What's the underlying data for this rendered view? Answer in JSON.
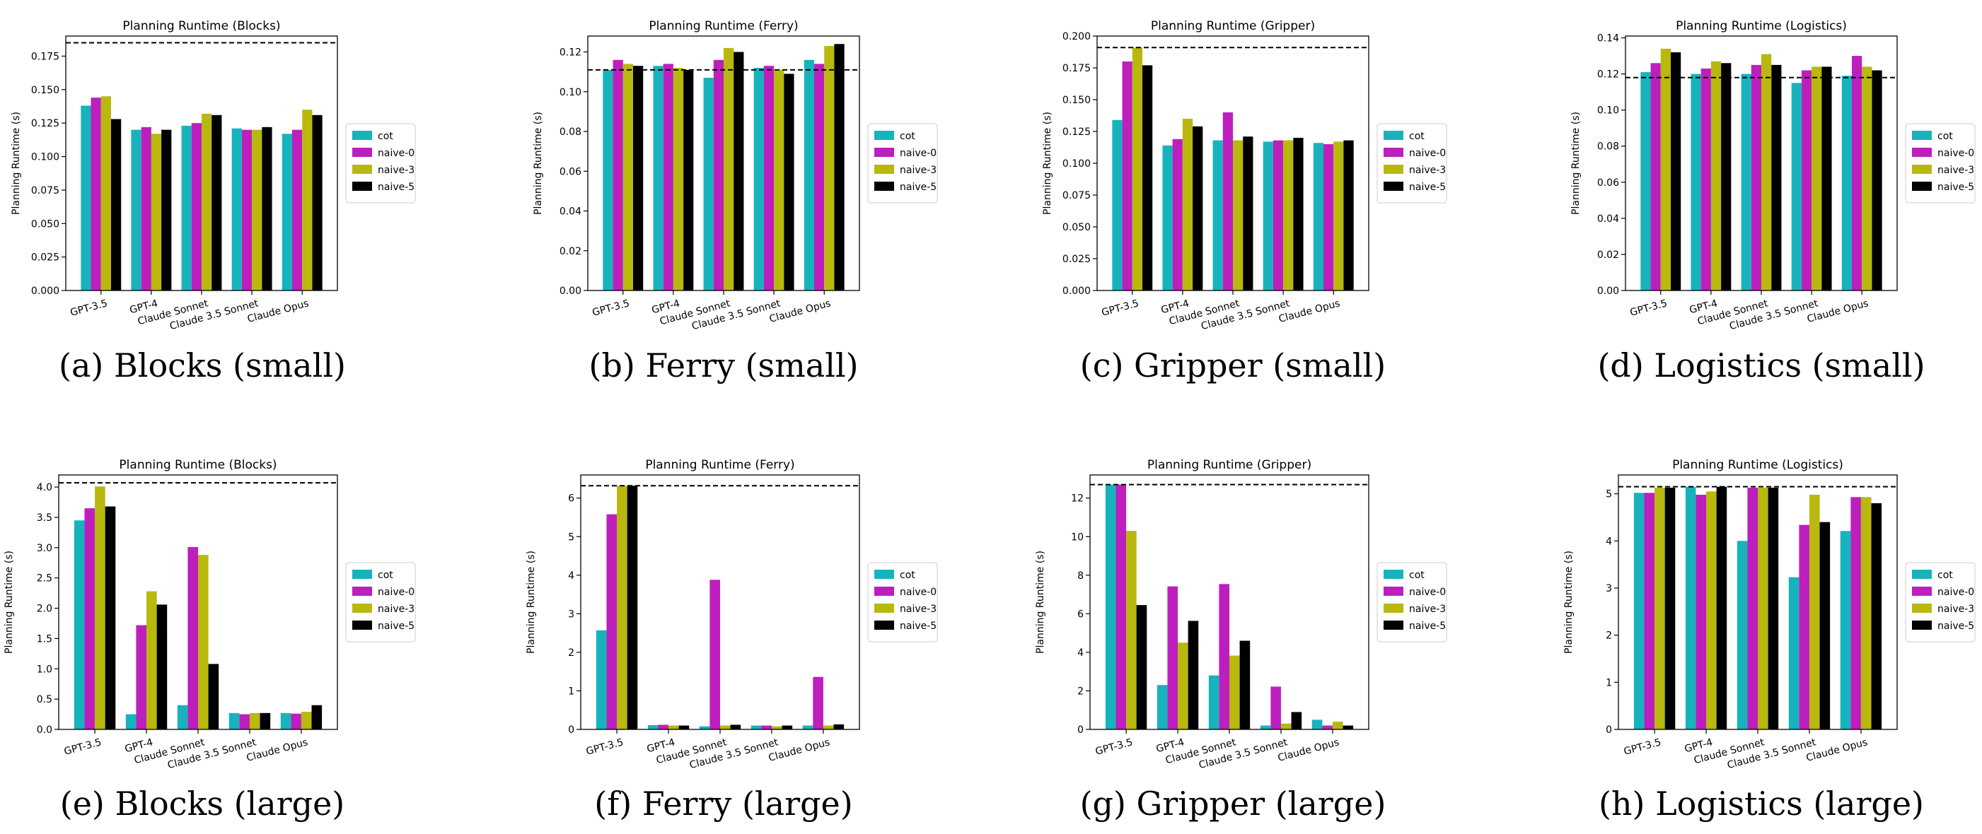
{
  "series_names": [
    "cot",
    "naive-0",
    "naive-3",
    "naive-5"
  ],
  "colors": {
    "cot": "#17b3bd",
    "naive-0": "#bd1fbd",
    "naive-3": "#b8b80e",
    "naive-5": "#000000"
  },
  "chart_data": [
    {
      "type": "bar",
      "caption": "(a) Blocks (small)",
      "title": "Planning Runtime (Blocks)",
      "ylabel": "Planning Runtime (s)",
      "categories": [
        "GPT-3.5",
        "GPT-4",
        "Claude Sonnet",
        "Claude 3.5 Sonnet",
        "Claude Opus"
      ],
      "ylim": [
        0,
        0.19
      ],
      "yticks": [
        0,
        0.025,
        0.05,
        0.075,
        0.1,
        0.125,
        0.15,
        0.175
      ],
      "ytick_labels": [
        "0.000",
        "0.025",
        "0.050",
        "0.075",
        "0.100",
        "0.125",
        "0.150",
        "0.175"
      ],
      "baseline": 0.185,
      "series": [
        {
          "name": "cot",
          "values": [
            0.138,
            0.12,
            0.123,
            0.121,
            0.117
          ]
        },
        {
          "name": "naive-0",
          "values": [
            0.144,
            0.122,
            0.125,
            0.12,
            0.12
          ]
        },
        {
          "name": "naive-3",
          "values": [
            0.145,
            0.117,
            0.132,
            0.12,
            0.135
          ]
        },
        {
          "name": "naive-5",
          "values": [
            0.128,
            0.12,
            0.131,
            0.122,
            0.131
          ]
        }
      ]
    },
    {
      "type": "bar",
      "caption": "(b) Ferry (small)",
      "title": "Planning Runtime (Ferry)",
      "ylabel": "Planning Runtime (s)",
      "categories": [
        "GPT-3.5",
        "GPT-4",
        "Claude Sonnet",
        "Claude 3.5 Sonnet",
        "Claude Opus"
      ],
      "ylim": [
        0,
        0.128
      ],
      "yticks": [
        0,
        0.02,
        0.04,
        0.06,
        0.08,
        0.1,
        0.12
      ],
      "ytick_labels": [
        "0.00",
        "0.02",
        "0.04",
        "0.06",
        "0.08",
        "0.10",
        "0.12"
      ],
      "baseline": 0.111,
      "series": [
        {
          "name": "cot",
          "values": [
            0.111,
            0.113,
            0.107,
            0.112,
            0.116
          ]
        },
        {
          "name": "naive-0",
          "values": [
            0.116,
            0.114,
            0.116,
            0.113,
            0.114
          ]
        },
        {
          "name": "naive-3",
          "values": [
            0.114,
            0.112,
            0.122,
            0.111,
            0.123
          ]
        },
        {
          "name": "naive-5",
          "values": [
            0.113,
            0.111,
            0.12,
            0.109,
            0.124
          ]
        }
      ]
    },
    {
      "type": "bar",
      "caption": "(c) Gripper (small)",
      "title": "Planning Runtime (Gripper)",
      "ylabel": "Planning Runtime (s)",
      "categories": [
        "GPT-3.5",
        "GPT-4",
        "Claude Sonnet",
        "Claude 3.5 Sonnet",
        "Claude Opus"
      ],
      "ylim": [
        0,
        0.2
      ],
      "yticks": [
        0,
        0.025,
        0.05,
        0.075,
        0.1,
        0.125,
        0.15,
        0.175,
        0.2
      ],
      "ytick_labels": [
        "0.000",
        "0.025",
        "0.050",
        "0.075",
        "0.100",
        "0.125",
        "0.150",
        "0.175",
        "0.200"
      ],
      "baseline": 0.191,
      "series": [
        {
          "name": "cot",
          "values": [
            0.134,
            0.114,
            0.118,
            0.117,
            0.116
          ]
        },
        {
          "name": "naive-0",
          "values": [
            0.18,
            0.119,
            0.14,
            0.118,
            0.115
          ]
        },
        {
          "name": "naive-3",
          "values": [
            0.191,
            0.135,
            0.118,
            0.118,
            0.117
          ]
        },
        {
          "name": "naive-5",
          "values": [
            0.177,
            0.129,
            0.121,
            0.12,
            0.118
          ]
        }
      ]
    },
    {
      "type": "bar",
      "caption": "(d) Logistics (small)",
      "title": "Planning Runtime (Logistics)",
      "ylabel": "Planning Runtime (s)",
      "categories": [
        "GPT-3.5",
        "GPT-4",
        "Claude Sonnet",
        "Claude 3.5 Sonnet",
        "Claude Opus"
      ],
      "ylim": [
        0,
        0.141
      ],
      "yticks": [
        0,
        0.02,
        0.04,
        0.06,
        0.08,
        0.1,
        0.12,
        0.14
      ],
      "ytick_labels": [
        "0.00",
        "0.02",
        "0.04",
        "0.06",
        "0.08",
        "0.10",
        "0.12",
        "0.14"
      ],
      "baseline": 0.118,
      "series": [
        {
          "name": "cot",
          "values": [
            0.121,
            0.12,
            0.12,
            0.115,
            0.119
          ]
        },
        {
          "name": "naive-0",
          "values": [
            0.126,
            0.123,
            0.125,
            0.122,
            0.13
          ]
        },
        {
          "name": "naive-3",
          "values": [
            0.134,
            0.127,
            0.131,
            0.124,
            0.124
          ]
        },
        {
          "name": "naive-5",
          "values": [
            0.132,
            0.126,
            0.125,
            0.124,
            0.122
          ]
        }
      ]
    },
    {
      "type": "bar",
      "caption": "(e) Blocks (large)",
      "title": "Planning Runtime (Blocks)",
      "ylabel": "Planning Runtime (s)",
      "categories": [
        "GPT-3.5",
        "GPT-4",
        "Claude Sonnet",
        "Claude 3.5 Sonnet",
        "Claude Opus"
      ],
      "ylim": [
        0,
        4.2
      ],
      "yticks": [
        0,
        0.5,
        1,
        1.5,
        2,
        2.5,
        3,
        3.5,
        4
      ],
      "ytick_labels": [
        "0.0",
        "0.5",
        "1.0",
        "1.5",
        "2.0",
        "2.5",
        "3.0",
        "3.5",
        "4.0"
      ],
      "baseline": 4.07,
      "series": [
        {
          "name": "cot",
          "values": [
            3.45,
            0.25,
            0.4,
            0.27,
            0.27
          ]
        },
        {
          "name": "naive-0",
          "values": [
            3.65,
            1.72,
            3.01,
            0.25,
            0.26
          ]
        },
        {
          "name": "naive-3",
          "values": [
            4.01,
            2.28,
            2.88,
            0.27,
            0.29
          ]
        },
        {
          "name": "naive-5",
          "values": [
            3.68,
            2.06,
            1.08,
            0.27,
            0.4
          ]
        }
      ]
    },
    {
      "type": "bar",
      "caption": "(f) Ferry (large)",
      "title": "Planning Runtime (Ferry)",
      "ylabel": "Planning Runtime (s)",
      "categories": [
        "GPT-3.5",
        "GPT-4",
        "Claude Sonnet",
        "Claude 3.5 Sonnet",
        "Claude Opus"
      ],
      "ylim": [
        0,
        6.6
      ],
      "yticks": [
        0,
        1,
        2,
        3,
        4,
        5,
        6
      ],
      "ytick_labels": [
        "0",
        "1",
        "2",
        "3",
        "4",
        "5",
        "6"
      ],
      "baseline": 6.32,
      "series": [
        {
          "name": "cot",
          "values": [
            2.57,
            0.11,
            0.08,
            0.1,
            0.1
          ]
        },
        {
          "name": "naive-0",
          "values": [
            5.58,
            0.12,
            3.88,
            0.1,
            1.36
          ]
        },
        {
          "name": "naive-3",
          "values": [
            6.32,
            0.1,
            0.1,
            0.08,
            0.1
          ]
        },
        {
          "name": "naive-5",
          "values": [
            6.32,
            0.1,
            0.12,
            0.1,
            0.13
          ]
        }
      ]
    },
    {
      "type": "bar",
      "caption": "(g) Gripper (large)",
      "title": "Planning Runtime (Gripper)",
      "ylabel": "Planning Runtime (s)",
      "categories": [
        "GPT-3.5",
        "GPT-4",
        "Claude Sonnet",
        "Claude 3.5 Sonnet",
        "Claude Opus"
      ],
      "ylim": [
        0,
        13.2
      ],
      "yticks": [
        0,
        2,
        4,
        6,
        8,
        10,
        12
      ],
      "ytick_labels": [
        "0",
        "2",
        "4",
        "6",
        "8",
        "10",
        "12"
      ],
      "baseline": 12.7,
      "series": [
        {
          "name": "cot",
          "values": [
            12.7,
            2.3,
            2.8,
            0.2,
            0.5
          ]
        },
        {
          "name": "naive-0",
          "values": [
            12.7,
            7.42,
            7.54,
            2.22,
            0.2
          ]
        },
        {
          "name": "naive-3",
          "values": [
            10.3,
            4.5,
            3.83,
            0.3,
            0.4
          ]
        },
        {
          "name": "naive-5",
          "values": [
            6.45,
            5.63,
            4.6,
            0.9,
            0.2
          ]
        }
      ]
    },
    {
      "type": "bar",
      "caption": "(h) Logistics (large)",
      "title": "Planning Runtime (Logistics)",
      "ylabel": "Planning Runtime (s)",
      "categories": [
        "GPT-3.5",
        "GPT-4",
        "Claude Sonnet",
        "Claude 3.5 Sonnet",
        "Claude Opus"
      ],
      "ylim": [
        0,
        5.4
      ],
      "yticks": [
        0,
        1,
        2,
        3,
        4,
        5
      ],
      "ytick_labels": [
        "0",
        "1",
        "2",
        "3",
        "4",
        "5"
      ],
      "baseline": 5.15,
      "series": [
        {
          "name": "cot",
          "values": [
            5.02,
            5.15,
            4.0,
            3.23,
            4.21
          ]
        },
        {
          "name": "naive-0",
          "values": [
            5.02,
            4.98,
            5.13,
            4.34,
            4.93
          ]
        },
        {
          "name": "naive-3",
          "values": [
            5.13,
            5.05,
            5.13,
            4.98,
            4.93
          ]
        },
        {
          "name": "naive-5",
          "values": [
            5.13,
            5.15,
            5.13,
            4.4,
            4.8
          ]
        }
      ]
    }
  ]
}
